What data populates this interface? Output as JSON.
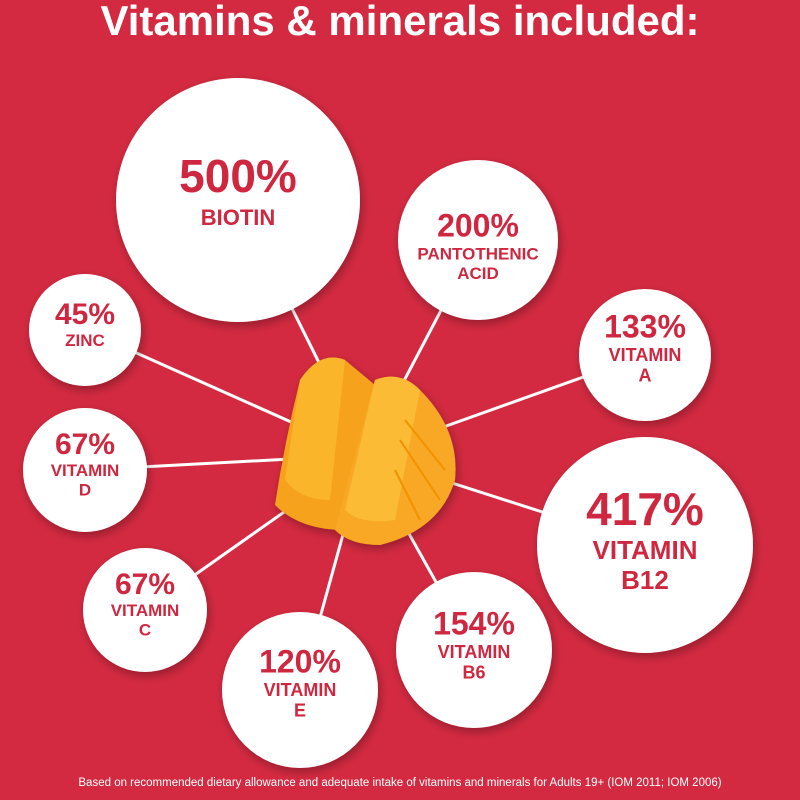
{
  "header": {
    "title": "Vitamins & minerals included:"
  },
  "nodes": [
    {
      "value": "500%",
      "label": [
        "BIOTIN"
      ]
    },
    {
      "value": "200%",
      "label": [
        "PANTOTHENIC",
        "ACID"
      ]
    },
    {
      "value": "133%",
      "label": [
        "VITAMIN",
        "A"
      ]
    },
    {
      "value": "417%",
      "label": [
        "VITAMIN",
        "B12"
      ]
    },
    {
      "value": "154%",
      "label": [
        "VITAMIN",
        "B6"
      ]
    },
    {
      "value": "120%",
      "label": [
        "VITAMIN",
        "E"
      ]
    },
    {
      "value": "67%",
      "label": [
        "VITAMIN",
        "C"
      ]
    },
    {
      "value": "67%",
      "label": [
        "VITAMIN",
        "D"
      ]
    },
    {
      "value": "45%",
      "label": [
        "ZINC"
      ]
    }
  ],
  "footnote": "Based on recommended dietary allowance and adequate intake of vitamins and minerals for Adults 19+ (IOM 2011; IOM 2006)"
}
